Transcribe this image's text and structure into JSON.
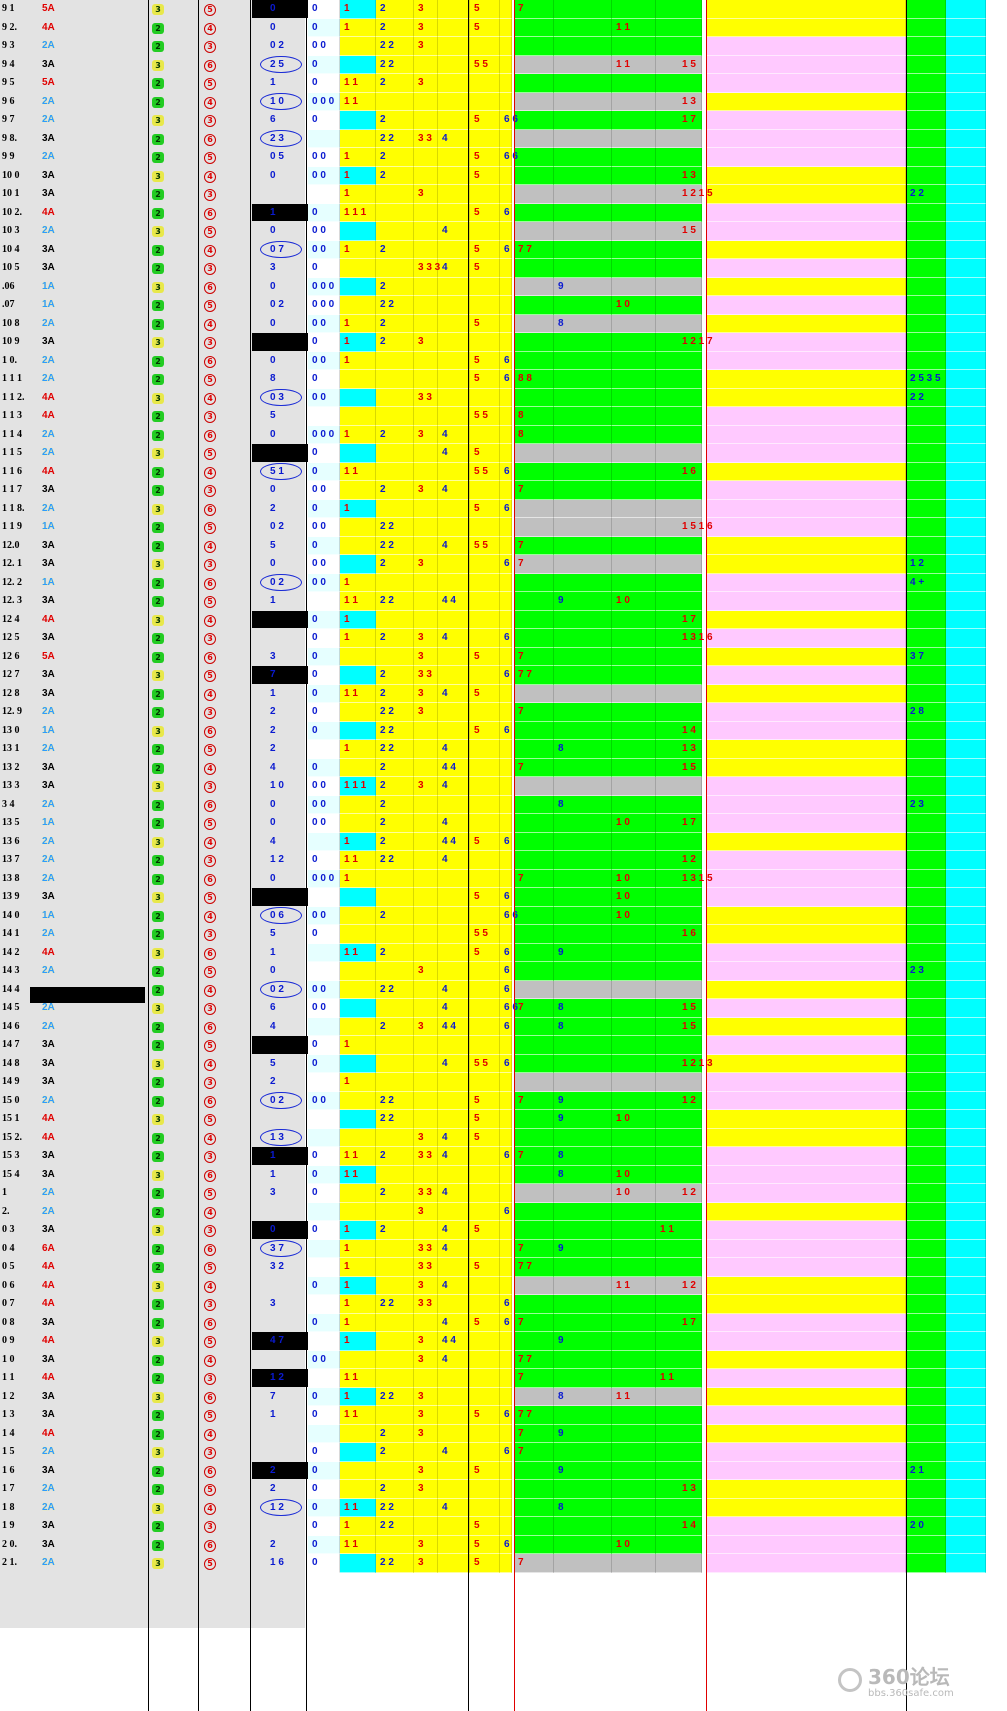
{
  "rows": [
    {
      "n": "9 1",
      "a": "5A"
    },
    {
      "n": "9 2.",
      "a": "4A"
    },
    {
      "n": "9 3",
      "a": "2A"
    },
    {
      "n": "9 4",
      "a": "3A"
    },
    {
      "n": "9 5",
      "a": "5A"
    },
    {
      "n": "9 6",
      "a": "2A"
    },
    {
      "n": "9 7",
      "a": "2A"
    },
    {
      "n": "9 8.",
      "a": "3A"
    },
    {
      "n": "9 9",
      "a": "2A"
    },
    {
      "n": "10 0",
      "a": "3A"
    },
    {
      "n": "10 1",
      "a": "3A"
    },
    {
      "n": "10 2.",
      "a": "4A"
    },
    {
      "n": "10 3",
      "a": "2A"
    },
    {
      "n": "10 4",
      "a": "3A"
    },
    {
      "n": "10 5",
      "a": "3A"
    },
    {
      "n": ".06",
      "a": "1A"
    },
    {
      "n": ".07",
      "a": "1A"
    },
    {
      "n": "10 8",
      "a": "2A"
    },
    {
      "n": "10 9",
      "a": "3A"
    },
    {
      "n": "1 0.",
      "a": "2A"
    },
    {
      "n": "1 1 1",
      "a": "2A"
    },
    {
      "n": "1 1 2.",
      "a": "4A"
    },
    {
      "n": "1 1 3",
      "a": "4A"
    },
    {
      "n": "1 1 4",
      "a": "2A"
    },
    {
      "n": "1 1 5",
      "a": "2A"
    },
    {
      "n": "1 1 6",
      "a": "4A"
    },
    {
      "n": "1 1 7",
      "a": "3A"
    },
    {
      "n": "1 1 8.",
      "a": "2A"
    },
    {
      "n": "1 1 9",
      "a": "1A"
    },
    {
      "n": "12.0",
      "a": "3A"
    },
    {
      "n": "12. 1",
      "a": "3A"
    },
    {
      "n": "12. 2",
      "a": "1A"
    },
    {
      "n": "12. 3",
      "a": "3A"
    },
    {
      "n": "12 4",
      "a": "4A"
    },
    {
      "n": "12 5",
      "a": "3A"
    },
    {
      "n": "12 6",
      "a": "5A"
    },
    {
      "n": "12 7",
      "a": "3A"
    },
    {
      "n": "12 8",
      "a": "3A"
    },
    {
      "n": "12. 9",
      "a": "2A"
    },
    {
      "n": "13 0",
      "a": "1A"
    },
    {
      "n": "13 1",
      "a": "2A"
    },
    {
      "n": "13 2",
      "a": "3A"
    },
    {
      "n": "13 3",
      "a": "3A"
    },
    {
      "n": "3 4",
      "a": "2A"
    },
    {
      "n": "13 5",
      "a": "1A"
    },
    {
      "n": "13 6",
      "a": "2A"
    },
    {
      "n": "13 7",
      "a": "2A"
    },
    {
      "n": "13 8",
      "a": "2A"
    },
    {
      "n": "13 9",
      "a": "3A"
    },
    {
      "n": "14 0",
      "a": "1A"
    },
    {
      "n": "14 1",
      "a": "2A"
    },
    {
      "n": "14 2",
      "a": "4A"
    },
    {
      "n": "14 3",
      "a": "2A"
    },
    {
      "n": "14 4",
      "a": ""
    },
    {
      "n": "14 5",
      "a": "2A"
    },
    {
      "n": "14 6",
      "a": "2A"
    },
    {
      "n": "14 7",
      "a": "3A"
    },
    {
      "n": "14 8",
      "a": "3A"
    },
    {
      "n": "14 9",
      "a": "3A"
    },
    {
      "n": "15 0",
      "a": "2A"
    },
    {
      "n": "15 1",
      "a": "4A"
    },
    {
      "n": "15 2.",
      "a": "4A"
    },
    {
      "n": "15 3",
      "a": "3A"
    },
    {
      "n": "15 4",
      "a": "3A"
    },
    {
      "n": "1",
      "a": "2A"
    },
    {
      "n": "2.",
      "a": "2A"
    },
    {
      "n": "0 3",
      "a": "3A"
    },
    {
      "n": "0 4",
      "a": "6A"
    },
    {
      "n": "0 5",
      "a": "4A"
    },
    {
      "n": "0 6",
      "a": "4A"
    },
    {
      "n": "0 7",
      "a": "4A"
    },
    {
      "n": "0 8",
      "a": "3A"
    },
    {
      "n": "0 9",
      "a": "4A"
    },
    {
      "n": "1 0",
      "a": "3A"
    },
    {
      "n": "1 1",
      "a": "4A"
    },
    {
      "n": "1 2",
      "a": "3A"
    },
    {
      "n": "1 3",
      "a": "3A"
    },
    {
      "n": "1 4",
      "a": "4A"
    },
    {
      "n": "1 5",
      "a": "2A"
    },
    {
      "n": "1 6",
      "a": "3A"
    },
    {
      "n": "1 7",
      "a": "2A"
    },
    {
      "n": "1 8",
      "a": "2A"
    },
    {
      "n": "1 9",
      "a": "3A"
    },
    {
      "n": "2 0.",
      "a": "3A"
    },
    {
      "n": "2 1.",
      "a": "2A"
    }
  ],
  "cells": {
    "c_0": [
      "0",
      "0",
      "0 2",
      "2 5",
      "1",
      "1 0",
      "6",
      "2 3",
      "0 5",
      "0",
      "",
      "1",
      "0",
      "0 7",
      "3",
      "0",
      "0 2",
      "0",
      "",
      "0",
      "8",
      "0 3",
      "5",
      "0",
      "",
      "5 1",
      "0",
      "2",
      "0 2",
      "5",
      "0",
      "0 2",
      "1",
      "",
      "",
      "3",
      "7",
      "1",
      "2",
      "2",
      "2",
      "4",
      "1 0",
      "0",
      "0",
      "4",
      "1 2",
      "0",
      "",
      "0 6",
      "5",
      "1",
      "0",
      "0 2",
      "6",
      "4",
      "",
      "5",
      "2",
      "0 2",
      "",
      "1 3",
      "1",
      "1",
      "3",
      "",
      "0",
      "3 7",
      "3 2",
      "",
      "3",
      "",
      "4 7",
      "",
      "1 2",
      "7",
      "1",
      "",
      "",
      "2",
      "2",
      "1 2",
      "",
      "2",
      "1 6"
    ],
    "c_1": [
      "0",
      "0",
      "0 0",
      "0",
      "0",
      "0 0 0",
      "0",
      "",
      "0 0",
      "0 0",
      "",
      "0",
      "0 0",
      "0 0",
      "0",
      "0 0 0",
      "0 0 0",
      "0 0",
      "0",
      "0 0",
      "0",
      "0 0",
      "",
      "0 0 0",
      "0",
      "0",
      "0 0",
      "0",
      "0 0",
      "0",
      "0 0",
      "0 0",
      "",
      "0",
      "0",
      "0",
      "0",
      "0",
      "0",
      "0",
      "",
      "0",
      "0 0",
      "0 0",
      "0 0",
      "",
      "0",
      "0 0 0",
      "",
      "0 0",
      "0",
      "",
      "",
      "0 0",
      "0 0",
      "",
      "0",
      "0",
      "",
      "0 0",
      "",
      "",
      "0",
      "0",
      "0",
      "",
      "0",
      "",
      "",
      "0",
      "",
      "0",
      "",
      "0 0",
      "",
      "0",
      "0",
      "",
      "0",
      "0",
      "0",
      "0",
      "0",
      "0",
      "0"
    ],
    "c_2": [
      "1",
      "1",
      "",
      "",
      "1 1",
      "1 1",
      "",
      "",
      "1",
      "1",
      "1",
      "1 1 1",
      "",
      "1",
      "",
      "",
      "",
      "1",
      "1",
      "1",
      "",
      "",
      "",
      "1",
      "",
      "1 1",
      "",
      "1",
      "",
      "",
      "",
      "1",
      "1 1",
      "1",
      "1",
      "",
      "",
      "1 1",
      "",
      "",
      "1",
      "",
      "1 1 1",
      "",
      "",
      "1",
      "1 1",
      "1",
      "",
      "",
      "",
      "1 1",
      "",
      "",
      "",
      "",
      "1",
      "",
      "1",
      "",
      "",
      "",
      "1 1",
      "1 1",
      "",
      "",
      "1",
      "1",
      "1",
      "1",
      "1",
      "1",
      "1",
      "",
      "1 1",
      "1",
      "1 1",
      "",
      "",
      "",
      "",
      "1 1",
      "1",
      "1 1"
    ],
    "c_3": [
      "2",
      "2",
      "2 2",
      "2 2",
      "2",
      "",
      "2",
      "2 2",
      "2",
      "2",
      "",
      "",
      "",
      "2",
      "",
      "2",
      "2 2",
      "2",
      "2",
      "",
      "",
      "",
      "",
      "2",
      "",
      "",
      "2",
      "",
      "2 2",
      "2 2",
      "2",
      "",
      "2 2",
      "",
      "2",
      "",
      "2",
      "2",
      "2 2",
      "2 2",
      "2 2",
      "2",
      "2",
      "2",
      "2",
      "2",
      "2 2",
      "",
      "",
      "2",
      "",
      "2",
      "",
      "2 2",
      "",
      "2",
      "",
      "",
      "",
      "2 2",
      "2 2",
      "",
      "2",
      "",
      "2",
      "",
      "2",
      "",
      "",
      "",
      "2 2",
      "",
      "",
      "",
      "",
      "2 2",
      "",
      "2",
      "2",
      "",
      "2",
      "2 2",
      "2 2",
      "",
      "2 2",
      ""
    ],
    "c_4": [
      "3",
      "3",
      "3",
      "",
      "3",
      "",
      "",
      "3 3",
      "",
      "",
      "3",
      "",
      "",
      "",
      "3 3 3",
      "",
      "",
      "",
      "3",
      "",
      "",
      "3 3",
      "",
      "3",
      "",
      "",
      "3",
      "",
      "",
      "",
      "3",
      "",
      "",
      "",
      "3",
      "3",
      "3 3",
      "3",
      "3",
      "",
      "",
      "",
      "3",
      "",
      "",
      "",
      "",
      "",
      "",
      "",
      "",
      "",
      "3",
      "",
      "",
      "3",
      "",
      "",
      "",
      "",
      "",
      "3",
      "3 3",
      "",
      "3 3",
      "3",
      "",
      "3 3",
      "3 3",
      "3",
      "3 3",
      "",
      "3",
      "3",
      "",
      "3",
      "3",
      "3",
      "",
      "3",
      "3",
      "",
      "",
      "3",
      "3",
      ""
    ],
    "c_5": [
      "",
      "",
      "",
      "",
      "",
      "",
      "",
      "4",
      "",
      "",
      "",
      "",
      "4",
      "",
      "4",
      "",
      "",
      "",
      "",
      "",
      "",
      "",
      "",
      "4",
      "4",
      "",
      "4",
      "",
      "",
      "4",
      "",
      "",
      "4 4",
      "",
      "4",
      "",
      "",
      "4",
      "",
      "",
      "4",
      "4 4",
      "4",
      "",
      "4",
      "4 4",
      "4",
      "",
      "",
      "",
      "",
      "",
      "",
      "4",
      "4",
      "4 4",
      "",
      "4",
      "",
      "",
      "",
      "4",
      "4",
      "",
      "4",
      "",
      "4",
      "4",
      "",
      "4",
      "",
      "4",
      "4 4",
      "4",
      "",
      "",
      "",
      "",
      "4",
      "",
      "",
      "4",
      "",
      "",
      ""
    ],
    "c_6": [
      "5",
      "5",
      "",
      "5 5",
      "",
      "",
      "5",
      "",
      "5",
      "5",
      "",
      "5",
      "",
      "5",
      "5",
      "",
      "",
      "5",
      "",
      "5",
      "5",
      "",
      "5 5",
      "",
      "5",
      "5 5",
      "",
      "5",
      "",
      "5 5",
      "",
      "",
      "",
      "",
      "",
      "5",
      "",
      "5",
      "",
      "5",
      "",
      "",
      "",
      "",
      "",
      "5",
      "",
      "",
      "5",
      "",
      "5 5",
      "5",
      "",
      "",
      "",
      "",
      "",
      "5 5",
      "",
      "5",
      "5",
      "5",
      "",
      "",
      "",
      "",
      "5",
      "",
      "5",
      "",
      "",
      "5",
      "",
      "",
      "",
      "",
      "5",
      "",
      "",
      "5",
      "",
      "",
      "5",
      "5",
      "5"
    ],
    "c_7": [
      "",
      "",
      "",
      "",
      "",
      "",
      "6 6",
      "",
      "6 6",
      "",
      "",
      "6",
      "",
      "6",
      "",
      "",
      "",
      "",
      "",
      "6",
      "6",
      "",
      "",
      "",
      "",
      "6",
      "",
      "6",
      "",
      "",
      "6",
      "",
      "",
      "",
      "6",
      "",
      "6",
      "",
      "",
      "6",
      "",
      "",
      "",
      "",
      "",
      "6",
      "",
      "",
      "6",
      "6 6",
      "",
      "6",
      "6",
      "6",
      "6 6",
      "6",
      "",
      "6",
      "",
      "",
      "",
      "",
      "6",
      "",
      "",
      "6",
      "",
      "",
      "",
      "",
      "6",
      "6",
      "",
      "",
      "",
      "",
      "6",
      "",
      "6",
      "",
      "",
      "",
      "",
      "6",
      "",
      "6 6"
    ],
    "c_8": [
      "7",
      "",
      "",
      "",
      "",
      "",
      "",
      "",
      "",
      "",
      "",
      "",
      "",
      "7 7",
      "",
      "",
      "",
      "",
      "",
      "",
      "8 8",
      "",
      "8",
      "8",
      "",
      "",
      "7",
      "",
      "",
      "7",
      "7",
      "",
      "",
      "",
      "",
      "7",
      "7 7",
      "",
      "7",
      "",
      "",
      "7",
      "",
      "",
      "",
      "",
      "",
      "7",
      "",
      "",
      "",
      "",
      "",
      "",
      "7",
      "",
      "",
      "",
      "",
      "7",
      "",
      "",
      "7",
      "",
      "",
      "",
      "",
      "7",
      "7 7",
      "",
      "",
      "7",
      "",
      "7 7",
      "7",
      "",
      "7 7",
      "7",
      "7",
      "",
      "",
      "",
      "",
      "",
      "7",
      ""
    ],
    "c_9": [
      "",
      "",
      "",
      "",
      "",
      "",
      "",
      "",
      "",
      "",
      "",
      "",
      "",
      "",
      "",
      "9",
      "",
      "8",
      "",
      "",
      "",
      "",
      "",
      "",
      "",
      "",
      "",
      "",
      "",
      "",
      "",
      "",
      "9",
      "",
      "",
      "",
      "",
      "",
      "",
      "",
      "8",
      "",
      "",
      "8",
      "",
      "",
      "",
      "",
      "",
      "",
      "",
      "9",
      "",
      "",
      "8",
      "8",
      "",
      "",
      "",
      "9",
      "9",
      "",
      "8",
      "8",
      "",
      "",
      "",
      "9",
      "",
      "",
      "",
      "",
      "9",
      "",
      "",
      "8",
      "",
      "9",
      "",
      "9",
      "",
      "8",
      ""
    ],
    "c_10": [
      "",
      "1 1",
      "",
      "1 1",
      "",
      "",
      "",
      "",
      "",
      "",
      "",
      "",
      "",
      "",
      "",
      "",
      "1 0",
      "",
      "",
      "",
      "",
      "",
      "",
      "",
      "",
      "",
      "",
      "",
      "",
      "",
      "",
      "",
      "1 0",
      "",
      "",
      "",
      "",
      "",
      "",
      "",
      "",
      "",
      "",
      "",
      "1 0",
      "",
      "",
      "1 0",
      "1 0",
      "1 0",
      "",
      "",
      "",
      "",
      "",
      "",
      "",
      "",
      "",
      "",
      "1 0",
      "",
      "",
      "1 0",
      "1 0",
      "",
      "",
      "",
      "",
      "1 1",
      "",
      "",
      "",
      "",
      "",
      "1 1",
      "",
      "",
      "",
      "",
      "",
      "",
      "",
      "1 0",
      "",
      ""
    ],
    "c_11": [
      "",
      "",
      "",
      "",
      "",
      "",
      "",
      "",
      "",
      "",
      "",
      "",
      "",
      "",
      "",
      "",
      "",
      "",
      "",
      "",
      "",
      "",
      "",
      "",
      "",
      "",
      "",
      "",
      "",
      "",
      "",
      "",
      "",
      "",
      "",
      "",
      "",
      "",
      "",
      "",
      "",
      "",
      "",
      "",
      "",
      "",
      "",
      "",
      "",
      "",
      "",
      "",
      "",
      "",
      "",
      "",
      "",
      "",
      "",
      "",
      "",
      "",
      "",
      "",
      "",
      "",
      "1 1",
      "",
      "",
      "",
      "",
      "",
      "",
      "",
      "1 1",
      "",
      "",
      "",
      "",
      "",
      "",
      "",
      "",
      "",
      "",
      "",
      ""
    ],
    "c_12": [
      "",
      "",
      "",
      "1 5",
      "",
      "1 3",
      "1 7",
      "",
      "",
      "1 3",
      "1 2  1 5",
      "",
      "1 5",
      "",
      "",
      "",
      "",
      "",
      "1 2  1 7",
      "",
      "",
      "",
      "",
      "",
      "",
      "1 6",
      "",
      "",
      "1 5  1 6",
      "",
      "",
      "",
      "",
      "1 7",
      "1 3  1 6",
      "",
      "",
      "",
      "",
      "1 4",
      "1 3",
      "1 5",
      "",
      "",
      "1 7",
      "",
      "1 2",
      "1 3  1 5",
      "",
      "",
      "1 6",
      "",
      "",
      "",
      "1 5",
      "1 5",
      "",
      "1 2  1 3",
      "",
      "1 2",
      "",
      "",
      "",
      "",
      "1 2",
      "",
      "",
      "",
      "",
      "1 2",
      "",
      "1 7",
      "",
      "",
      "",
      "",
      "",
      "",
      "",
      "",
      "1 3",
      "",
      "1 4",
      ""
    ],
    "c_13": [
      "",
      "",
      "",
      "",
      "",
      "",
      "",
      "",
      "",
      "",
      "",
      "",
      "",
      "",
      "",
      "",
      "",
      "",
      "",
      "",
      "",
      "",
      "",
      "",
      "",
      "",
      "",
      "",
      "",
      "",
      "",
      "",
      "",
      "",
      "",
      "",
      "",
      "",
      "",
      "",
      "",
      "",
      "",
      "",
      "",
      "",
      "",
      "",
      "",
      "",
      "",
      "",
      "",
      "",
      "",
      "",
      "",
      "",
      "",
      "",
      "",
      "",
      "",
      "",
      "",
      "",
      "",
      "",
      "",
      "",
      "",
      "",
      "",
      "",
      "",
      "",
      "",
      "",
      "",
      "",
      "",
      "",
      "",
      "",
      "",
      "",
      "",
      "",
      "",
      ""
    ],
    "c_14": [
      "",
      "",
      "",
      "",
      "",
      "",
      "",
      "",
      "",
      "",
      "2 2",
      "",
      "",
      "",
      "",
      "",
      "",
      "",
      "",
      "",
      "2 5 3 5",
      "2 2",
      "",
      "",
      "",
      "",
      "",
      "",
      "",
      "",
      "1 2",
      "4 +",
      "",
      "",
      "",
      "3 7",
      "",
      "",
      "2 8",
      "",
      "",
      "",
      "",
      "2 3",
      "",
      "",
      "",
      "",
      "",
      "",
      "",
      "",
      "2 3",
      "",
      "",
      "",
      "",
      "",
      "",
      "",
      "",
      "",
      "",
      "",
      "",
      "",
      "",
      "",
      "",
      "",
      "",
      "",
      "",
      "",
      "",
      "",
      "",
      "",
      "",
      "2 1",
      "",
      "",
      "2 0",
      "",
      "",
      ""
    ]
  },
  "colors": {
    "yellow": "#ffff00",
    "green": "#00ff00",
    "pink": "#ffc9ff",
    "cyan": "#00ffff",
    "gray": "#c0c0c0",
    "black": "#000000",
    "lightcyan": "#e6ffff",
    "blueText": "#0a1ad0",
    "redText": "#e00000"
  },
  "watermark": {
    "big": "360论坛",
    "small": "bbs.360safe.com",
    "icon": "360-logo-icon"
  }
}
